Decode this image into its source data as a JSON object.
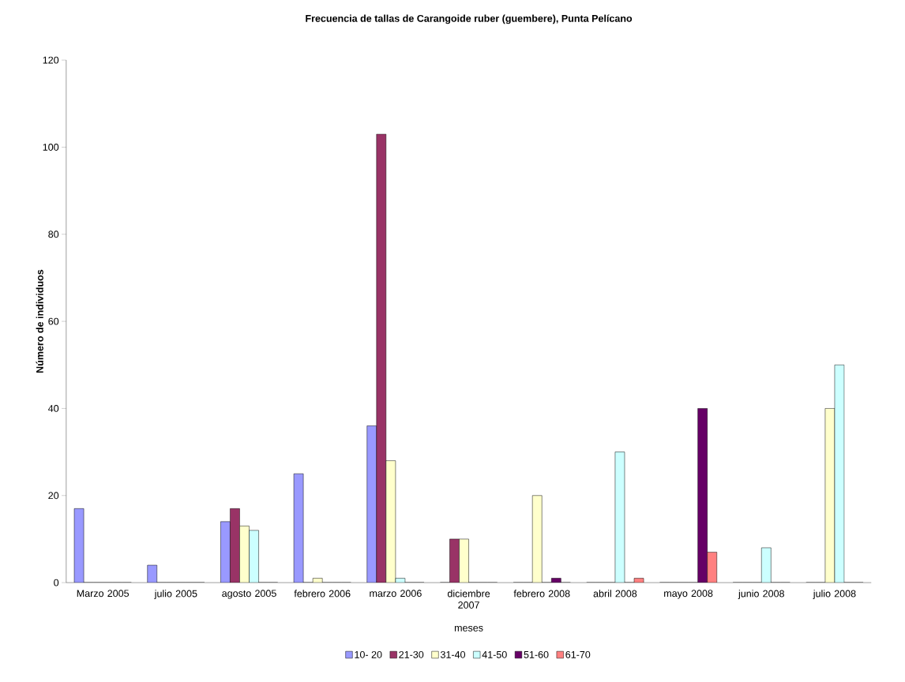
{
  "chart_data": {
    "type": "bar",
    "title": "Frecuencia de tallas de Carangoide ruber (guembere), Punta Pelícano",
    "xlabel": "meses",
    "ylabel": "Número de individuos",
    "categories": [
      "Marzo 2005",
      "julio 2005",
      "agosto 2005",
      "febrero 2006",
      "marzo 2006",
      "diciembre 2007",
      "febrero 2008",
      "abril 2008",
      "mayo 2008",
      "junio 2008",
      "julio 2008"
    ],
    "series": [
      {
        "name": "10- 20",
        "color": "#9999ff",
        "values": [
          17,
          4,
          14,
          25,
          36,
          0,
          0,
          0,
          0,
          0,
          0
        ]
      },
      {
        "name": "21-30",
        "color": "#993366",
        "values": [
          0,
          0,
          17,
          0,
          103,
          10,
          0,
          0,
          0,
          0,
          0
        ]
      },
      {
        "name": "31-40",
        "color": "#ffffcc",
        "values": [
          0,
          0,
          13,
          1,
          28,
          10,
          20,
          0,
          0,
          0,
          40
        ]
      },
      {
        "name": "41-50",
        "color": "#ccffff",
        "values": [
          0,
          0,
          12,
          0,
          1,
          0,
          0,
          30,
          0,
          8,
          50
        ]
      },
      {
        "name": "51-60",
        "color": "#660066",
        "values": [
          0,
          0,
          0,
          0,
          0,
          0,
          1,
          0,
          40,
          0,
          0
        ]
      },
      {
        "name": "61-70",
        "color": "#ff8080",
        "values": [
          0,
          0,
          0,
          0,
          0,
          0,
          0,
          1,
          7,
          0,
          0
        ]
      }
    ],
    "ylim": [
      0,
      120
    ],
    "yticks": [
      0,
      20,
      40,
      60,
      80,
      100,
      120
    ],
    "grid": false,
    "legend": "bottom"
  }
}
